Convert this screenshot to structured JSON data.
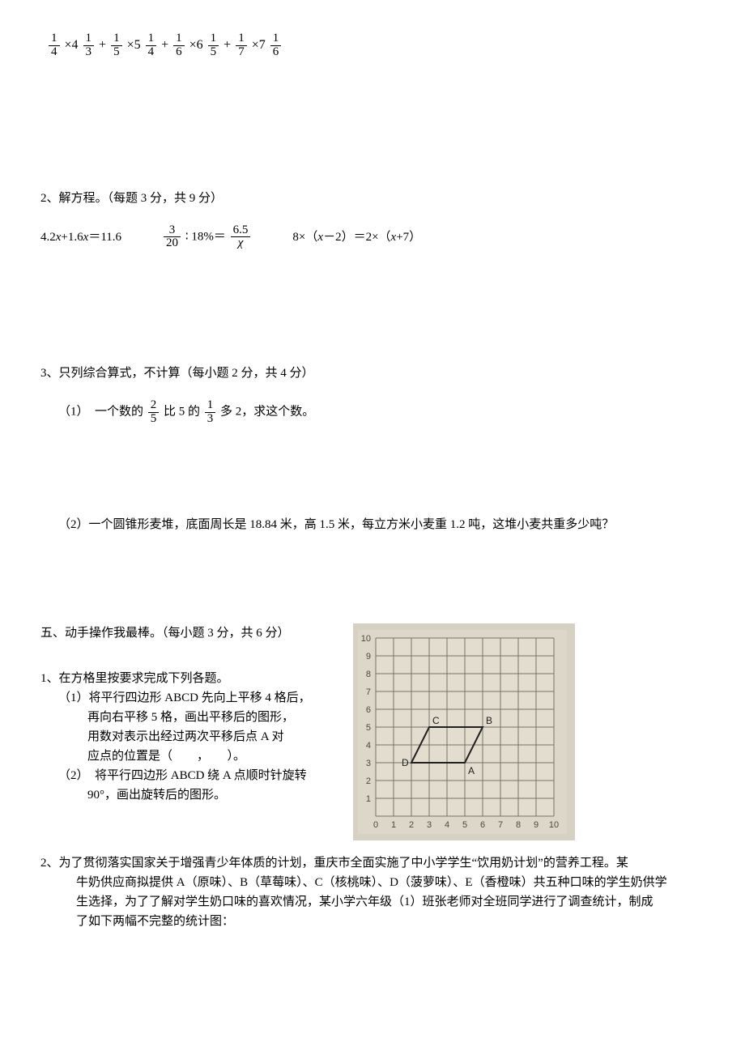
{
  "topExpression": {
    "tokens": "1/4 ×4 1/3 + 1/5 ×5 1/4 + 1/6 ×6 1/5 + 1/7 ×7 1/6"
  },
  "q2": {
    "title": "2、解方程。（每题 3 分，共 9 分）",
    "eq1": "4.2x+1.6x=11.6",
    "eq2": "3/20 ∶ 18%＝ 6.5/χ",
    "eq3": "8×（x－2）＝2×（x+7）"
  },
  "q3": {
    "title": "3、只列综合算式，不计算（每小题 2 分，共 4 分）",
    "p1_pre": "（1）　一个数的",
    "p1_mid1": "比 5 的",
    "p1_mid2": "多 2，求这个数。",
    "p2": "（2）一个圆锥形麦堆，底面周长是 18.84 米，高 1.5 米，每立方米小麦重 1.2 吨，这堆小麦共重多少吨？"
  },
  "q5": {
    "title": "五、动手操作我最棒。（每小题 3 分，共 6 分）",
    "q1": "1、在方格里按要求完成下列各题。",
    "q1_1a": "（1）将平行四边形 ABCD 先向上平移 4 格后，",
    "q1_1b": "再向右平移 5 格，画出平移后的图形，",
    "q1_1c": "用数对表示出经过两次平移后点 A 对",
    "q1_1d": "应点的位置是（　　，　　）。",
    "q1_2a": "（2）　将平行四边形 ABCD 绕 A 点顺时针旋转",
    "q1_2b": "90°，画出旋转后的图形。",
    "grid": {
      "cell": 22,
      "cols": 10,
      "rows": 10,
      "bg": "#dcd7c8",
      "gridcolor": "#767367",
      "textcolor": "#4b483f",
      "shapecolor": "#202020",
      "points": {
        "A": [
          5,
          3
        ],
        "B": [
          6,
          5
        ],
        "C": [
          3,
          5
        ],
        "D": [
          2,
          3
        ]
      },
      "labels": {
        "A": "A",
        "B": "B",
        "C": "C",
        "D": "D"
      }
    }
  },
  "q5_2": {
    "line1": "2、为了贯彻落实国家关于增强青少年体质的计划，重庆市全面实施了中小学学生“饮用奶计划”的营养工程。某",
    "line2": "牛奶供应商拟提供 A（原味）、B（草莓味）、C（核桃味）、D（菠萝味）、E（香橙味）共五种口味的学生奶供学",
    "line3": "生选择，为了了解对学生奶口味的喜欢情况，某小学六年级（1）班张老师对全班同学进行了调查统计，制成",
    "line4": "了如下两幅不完整的统计图："
  }
}
